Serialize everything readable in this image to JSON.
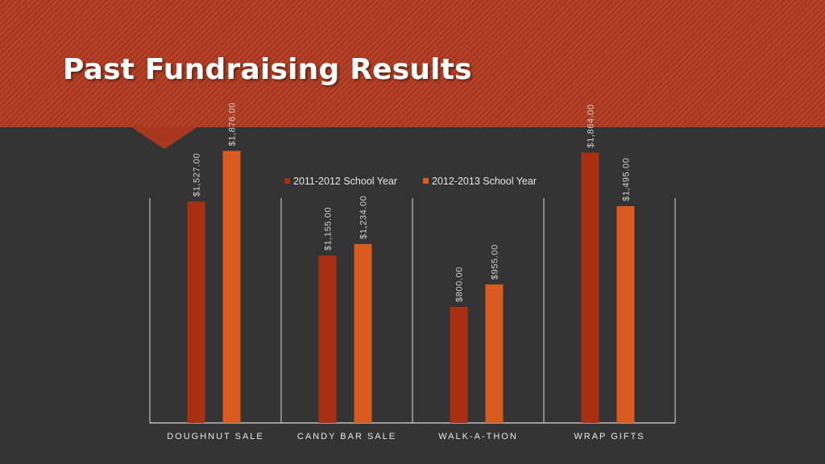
{
  "slide": {
    "title": "Past Fundraising Results"
  },
  "colors": {
    "header": "#b0391f",
    "background": "#333333",
    "series1": "#a92f12",
    "series2": "#d95b1f",
    "axis": "#d9d9d9",
    "text": "#e6e6e6",
    "label": "#d0d0d0"
  },
  "chart_data": {
    "type": "bar",
    "title": "",
    "xlabel": "",
    "ylabel": "",
    "categories": [
      "DOUGHNUT SALE",
      "CANDY BAR SALE",
      "WALK-A-THON",
      "WRAP GIFTS"
    ],
    "series": [
      {
        "name": "2011-2012 School Year",
        "values": [
          1527,
          1155,
          800,
          1864
        ],
        "labels": [
          "$1,527.00",
          "$1,155.00",
          "$800.00",
          "$1,864.00"
        ]
      },
      {
        "name": "2012-2013 School Year",
        "values": [
          1876,
          1234,
          955,
          1495
        ],
        "labels": [
          "$1,876.00",
          "$1,234.00",
          "$955.00",
          "$1,495.00"
        ]
      }
    ],
    "ylim": [
      0,
      2000
    ],
    "grid": false,
    "legend": "top-center",
    "data_labels": "rotated-vertical"
  }
}
